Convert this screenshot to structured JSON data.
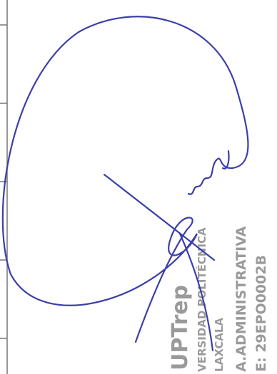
{
  "stamp": {
    "logo": "UPTrep",
    "lines": [
      "VERSIDAD POLITÉCNICA",
      "LAXCALA",
      "A.ADMINISTRATIVA",
      "E: 29EPO0002B"
    ]
  }
}
